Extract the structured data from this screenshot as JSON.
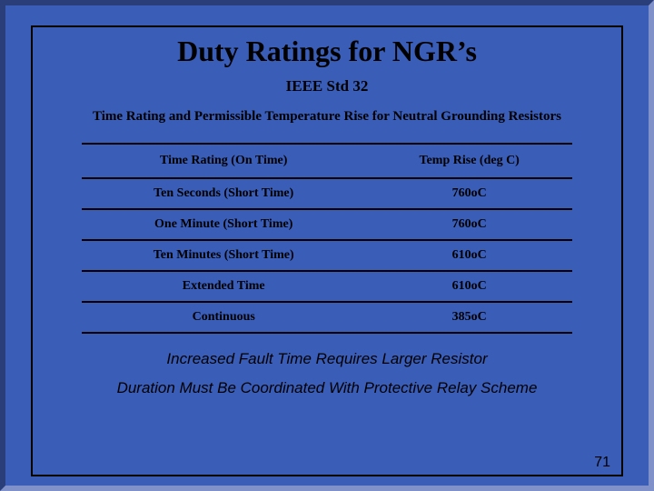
{
  "slide": {
    "title": "Duty Ratings for NGR’s",
    "subtitle": "IEEE Std 32",
    "table_title": "Time Rating and Permissible Temperature Rise for Neutral Grounding Resistors",
    "note1": "Increased Fault Time Requires Larger Resistor",
    "note2": "Duration Must Be Coordinated With Protective Relay Scheme",
    "page_number": "71"
  },
  "table": {
    "columns": [
      "Time Rating (On Time)",
      "Temp Rise (deg C)"
    ],
    "rows": [
      [
        "Ten Seconds (Short Time)",
        "760oC"
      ],
      [
        "One Minute (Short Time)",
        "760oC"
      ],
      [
        "Ten Minutes (Short Time)",
        "610oC"
      ],
      [
        "Extended Time",
        "610oC"
      ],
      [
        "Continuous",
        "385oC"
      ]
    ]
  },
  "style": {
    "background_color": "#3a5db8",
    "border_dark": "#2a3f7a",
    "border_light": "#8090c8",
    "text_color": "#000000",
    "title_fontsize": 32,
    "subtitle_fontsize": 17,
    "table_title_fontsize": 15,
    "cell_fontsize": 14,
    "note_fontsize": 17,
    "note_fontfamily": "Arial",
    "body_fontfamily": "Times New Roman"
  }
}
